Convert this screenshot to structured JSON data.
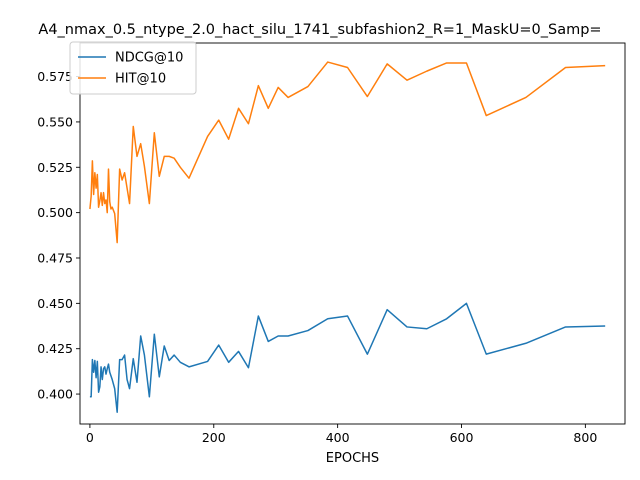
{
  "chart_data": {
    "type": "line",
    "title": "A4_nmax_0.5_ntype_2.0_hact_silu_1741_subfashion2_R=1_MaskU=0_Samp=",
    "xlabel": "EPOCHS",
    "ylabel": "",
    "xlim": [
      -16,
      864
    ],
    "ylim": [
      0.3835,
      0.5935
    ],
    "xticks": [
      0,
      200,
      400,
      600,
      800
    ],
    "yticks": [
      0.4,
      0.425,
      0.45,
      0.475,
      0.5,
      0.525,
      0.55,
      0.575
    ],
    "ytick_labels": [
      "0.400",
      "0.425",
      "0.450",
      "0.475",
      "0.500",
      "0.525",
      "0.550",
      "0.575"
    ],
    "grid": false,
    "legend_position": "top-left",
    "series": [
      {
        "name": "NDCG@10",
        "color": "#1f77b4",
        "x": [
          0,
          2,
          4,
          6,
          8,
          10,
          12,
          14,
          16,
          18,
          20,
          22,
          24,
          26,
          28,
          30,
          32,
          34,
          36,
          40,
          44,
          48,
          52,
          56,
          60,
          64,
          70,
          76,
          82,
          88,
          96,
          104,
          112,
          120,
          128,
          136,
          146,
          160,
          190,
          208,
          224,
          240,
          256,
          272,
          288,
          304,
          320,
          352,
          384,
          416,
          448,
          480,
          512,
          544,
          576,
          608,
          640,
          704,
          768,
          832
        ],
        "y": [
          0.3985,
          0.3985,
          0.419,
          0.412,
          0.4185,
          0.409,
          0.418,
          0.401,
          0.404,
          0.415,
          0.408,
          0.414,
          0.415,
          0.411,
          0.414,
          0.4165,
          0.412,
          0.41,
          0.408,
          0.403,
          0.39,
          0.419,
          0.419,
          0.4215,
          0.408,
          0.403,
          0.4195,
          0.4065,
          0.432,
          0.4215,
          0.3985,
          0.433,
          0.4095,
          0.4265,
          0.4185,
          0.4215,
          0.4175,
          0.415,
          0.418,
          0.427,
          0.4175,
          0.4235,
          0.4145,
          0.443,
          0.429,
          0.432,
          0.432,
          0.435,
          0.4415,
          0.443,
          0.422,
          0.4465,
          0.437,
          0.436,
          0.4415,
          0.45,
          0.422,
          0.428,
          0.437,
          0.4375
        ]
      },
      {
        "name": "HIT@10",
        "color": "#ff7f0e",
        "x": [
          0,
          2,
          4,
          6,
          8,
          10,
          12,
          14,
          16,
          18,
          20,
          22,
          24,
          26,
          28,
          30,
          32,
          34,
          36,
          40,
          44,
          48,
          52,
          56,
          60,
          64,
          70,
          76,
          82,
          88,
          96,
          104,
          112,
          120,
          128,
          136,
          146,
          160,
          190,
          208,
          224,
          240,
          256,
          272,
          288,
          304,
          320,
          352,
          384,
          416,
          448,
          480,
          512,
          544,
          576,
          608,
          640,
          704,
          768,
          832
        ],
        "y": [
          0.502,
          0.509,
          0.5285,
          0.51,
          0.522,
          0.5135,
          0.521,
          0.503,
          0.5065,
          0.511,
          0.504,
          0.511,
          0.505,
          0.507,
          0.5,
          0.524,
          0.506,
          0.502,
          0.503,
          0.4995,
          0.4835,
          0.524,
          0.518,
          0.522,
          0.5135,
          0.505,
          0.5475,
          0.531,
          0.538,
          0.5255,
          0.505,
          0.544,
          0.52,
          0.531,
          0.531,
          0.53,
          0.525,
          0.519,
          0.542,
          0.551,
          0.5405,
          0.5575,
          0.549,
          0.57,
          0.5575,
          0.569,
          0.5635,
          0.5695,
          0.583,
          0.58,
          0.564,
          0.582,
          0.573,
          0.578,
          0.5825,
          0.5825,
          0.5535,
          0.5635,
          0.58,
          0.581
        ]
      }
    ]
  }
}
